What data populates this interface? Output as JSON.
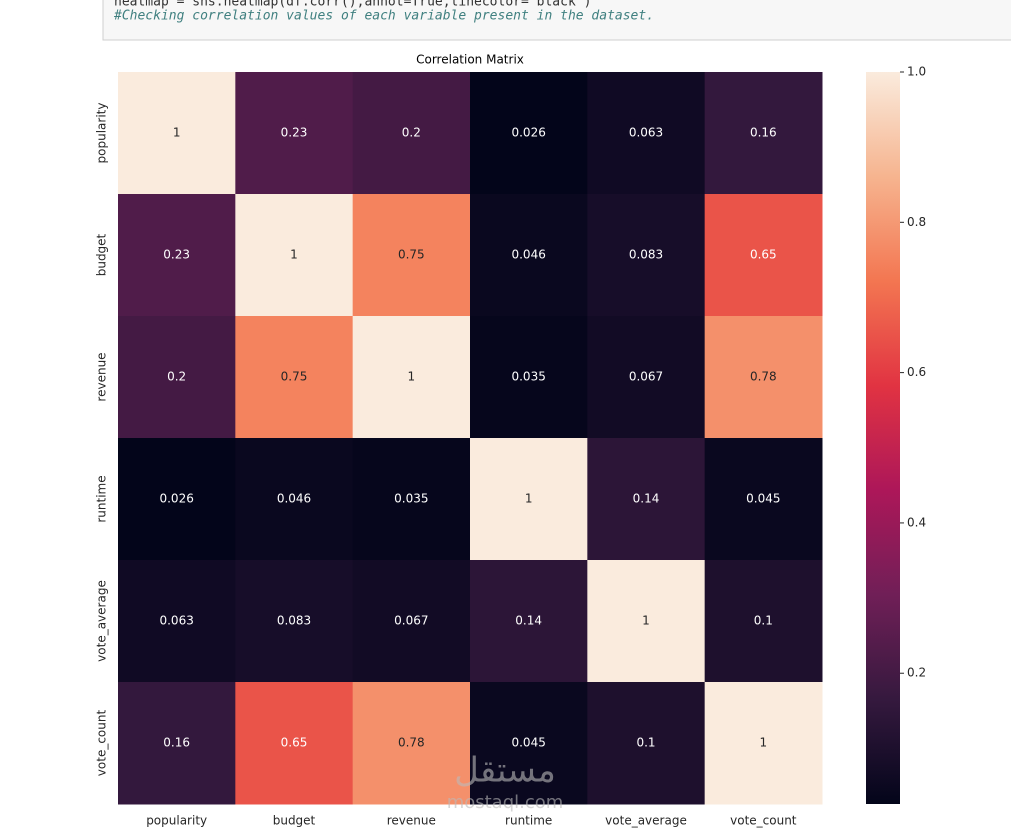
{
  "code_cell": {
    "lines": [
      "heatmap = sns.heatmap(df.corr(),annot=True,linecolor='black')",
      "#Checking correlation values of each variable present in the dataset."
    ]
  },
  "watermark": {
    "arabic": "مستقل",
    "latin": "mostaql.com"
  },
  "chart_data": {
    "type": "heatmap",
    "title": "Correlation Matrix",
    "colormap": "rocket",
    "x_categories": [
      "popularity",
      "budget",
      "revenue",
      "runtime",
      "vote_average",
      "vote_count"
    ],
    "y_categories": [
      "popularity",
      "budget",
      "revenue",
      "runtime",
      "vote_average",
      "vote_count"
    ],
    "values": [
      [
        1,
        0.23,
        0.2,
        0.026,
        0.063,
        0.16
      ],
      [
        0.23,
        1,
        0.75,
        0.046,
        0.083,
        0.65
      ],
      [
        0.2,
        0.75,
        1,
        0.035,
        0.067,
        0.78
      ],
      [
        0.026,
        0.046,
        0.035,
        1,
        0.14,
        0.045
      ],
      [
        0.063,
        0.083,
        0.067,
        0.14,
        1,
        0.1
      ],
      [
        0.16,
        0.65,
        0.78,
        0.045,
        0.1,
        1
      ]
    ],
    "clim": [
      0.026,
      1
    ],
    "cticks": [
      0.2,
      0.4,
      0.6,
      0.8,
      {
        "value": 1,
        "label": "1.0"
      }
    ]
  }
}
